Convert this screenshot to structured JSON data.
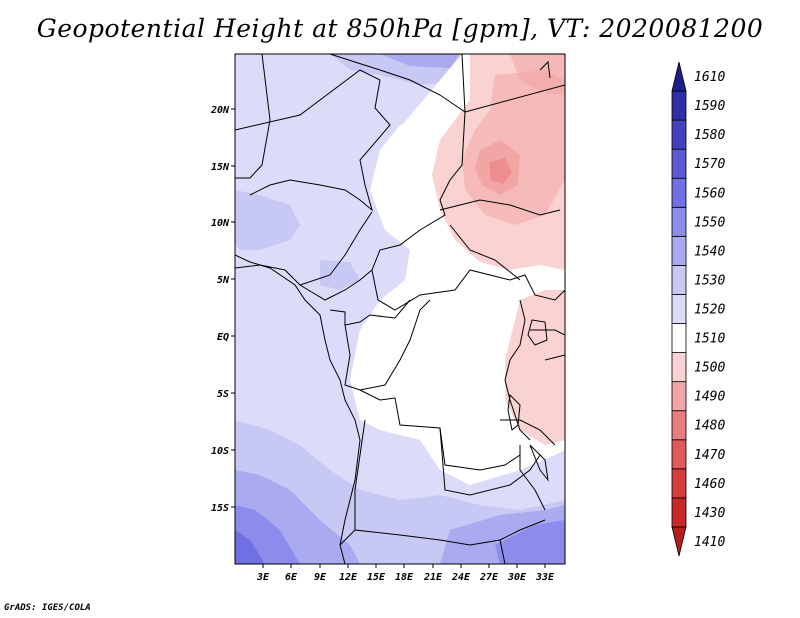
{
  "title": "Geopotential Height at 850hPa [gpm], VT: 2020081200",
  "credit": "GrADS: IGES/COLA",
  "map": {
    "lat_labels": [
      "20N",
      "15N",
      "10N",
      "5N",
      "EQ",
      "5S",
      "10S",
      "15S"
    ],
    "lon_labels": [
      "3E",
      "6E",
      "9E",
      "12E",
      "15E",
      "18E",
      "21E",
      "24E",
      "27E",
      "30E",
      "33E"
    ]
  },
  "colorbar": {
    "levels": [
      "1410",
      "1430",
      "1460",
      "1470",
      "1480",
      "1490",
      "1500",
      "1510",
      "1520",
      "1530",
      "1540",
      "1550",
      "1560",
      "1570",
      "1580",
      "1590",
      "1610"
    ],
    "colors": [
      "#b41e1e",
      "#c72828",
      "#d73c3c",
      "#e05a5a",
      "#e97d7d",
      "#f2a5a5",
      "#fad2d2",
      "#ffffff",
      "#dcdcfa",
      "#c8c8f5",
      "#aaaaf0",
      "#8c8cec",
      "#7070e2",
      "#5a5ad6",
      "#4242c0",
      "#2e2ea8",
      "#1e1e8c"
    ]
  }
}
